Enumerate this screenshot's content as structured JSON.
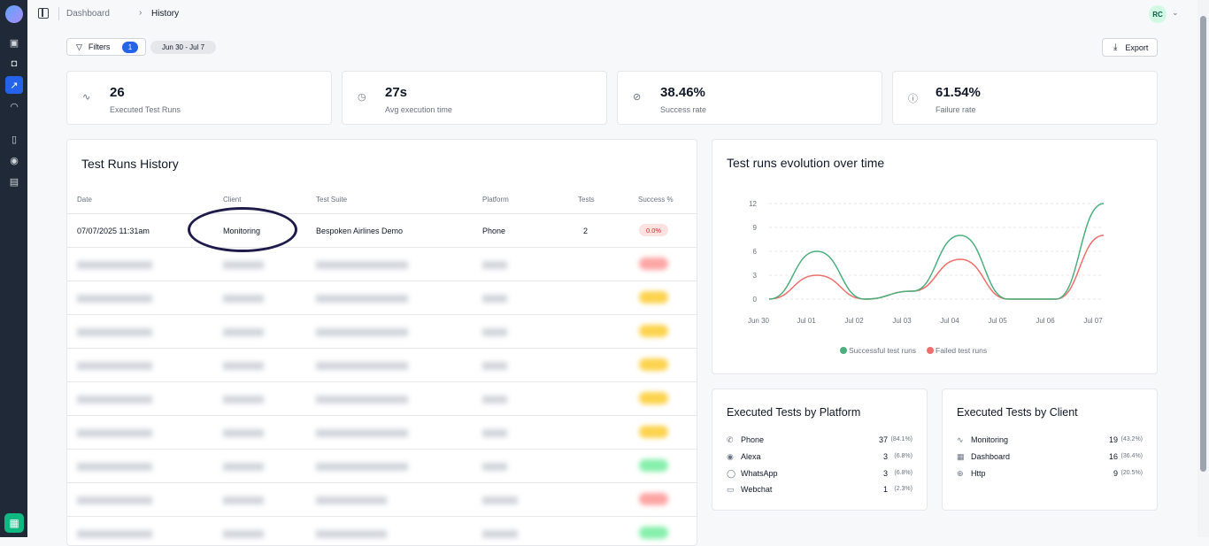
{
  "breadcrumb": {
    "root": "Dashboard",
    "current": "History"
  },
  "user": {
    "initials": "RC"
  },
  "toolbar": {
    "filters_label": "Filters",
    "filters_count": "1",
    "date_range": "Jun 30 - Jul 7",
    "export_label": "Export"
  },
  "stats": [
    {
      "value": "26",
      "label": "Executed Test Runs",
      "icon": "activity-icon"
    },
    {
      "value": "27s",
      "label": "Avg execution time",
      "icon": "clock-icon"
    },
    {
      "value": "38.46%",
      "label": "Success rate",
      "icon": "check-circle-icon"
    },
    {
      "value": "61.54%",
      "label": "Failure rate",
      "icon": "alert-circle-icon"
    }
  ],
  "history": {
    "title": "Test Runs History",
    "columns": {
      "date": "Date",
      "client": "Client",
      "suite": "Test Suite",
      "platform": "Platform",
      "tests": "Tests",
      "success": "Success %"
    },
    "first_row": {
      "date": "07/07/2025 11:31am",
      "client": "Monitoring",
      "suite": "Bespoken Airlines Demo",
      "platform": "Phone",
      "tests": "2",
      "success": "0.0%"
    }
  },
  "chart": {
    "title": "Test runs evolution over time"
  },
  "chart_data": {
    "type": "line",
    "x": [
      "Jun 30",
      "Jul 01",
      "Jul 02",
      "Jul 03",
      "Jul 04",
      "Jul 05",
      "Jul 06",
      "Jul 07"
    ],
    "yticks": [
      0,
      3,
      6,
      9,
      12
    ],
    "ylim": [
      0,
      12
    ],
    "series": [
      {
        "name": "Successful test runs",
        "color": "#4caf7d",
        "values": [
          0,
          6,
          0,
          1,
          8,
          0,
          0,
          12
        ]
      },
      {
        "name": "Failed test runs",
        "color": "#ef6f6c",
        "values": [
          0,
          3,
          0,
          1,
          5,
          0,
          0,
          8
        ]
      }
    ],
    "legend": "bottom-center",
    "grid": true
  },
  "platform": {
    "title": "Executed Tests by Platform",
    "items": [
      {
        "name": "Phone",
        "count": "37",
        "pct": "(84.1%)",
        "icon": "phone-icon"
      },
      {
        "name": "Alexa",
        "count": "3",
        "pct": "(6.8%)",
        "icon": "radio-icon"
      },
      {
        "name": "WhatsApp",
        "count": "3",
        "pct": "(6.8%)",
        "icon": "whatsapp-icon"
      },
      {
        "name": "Webchat",
        "count": "1",
        "pct": "(2.3%)",
        "icon": "chat-icon"
      }
    ]
  },
  "client": {
    "title": "Executed Tests by Client",
    "items": [
      {
        "name": "Monitoring",
        "count": "19",
        "pct": "(43.2%)",
        "icon": "activity-icon"
      },
      {
        "name": "Dashboard",
        "count": "16",
        "pct": "(36.4%)",
        "icon": "grid-icon"
      },
      {
        "name": "Http",
        "count": "9",
        "pct": "(20.5%)",
        "icon": "globe-icon"
      }
    ]
  }
}
